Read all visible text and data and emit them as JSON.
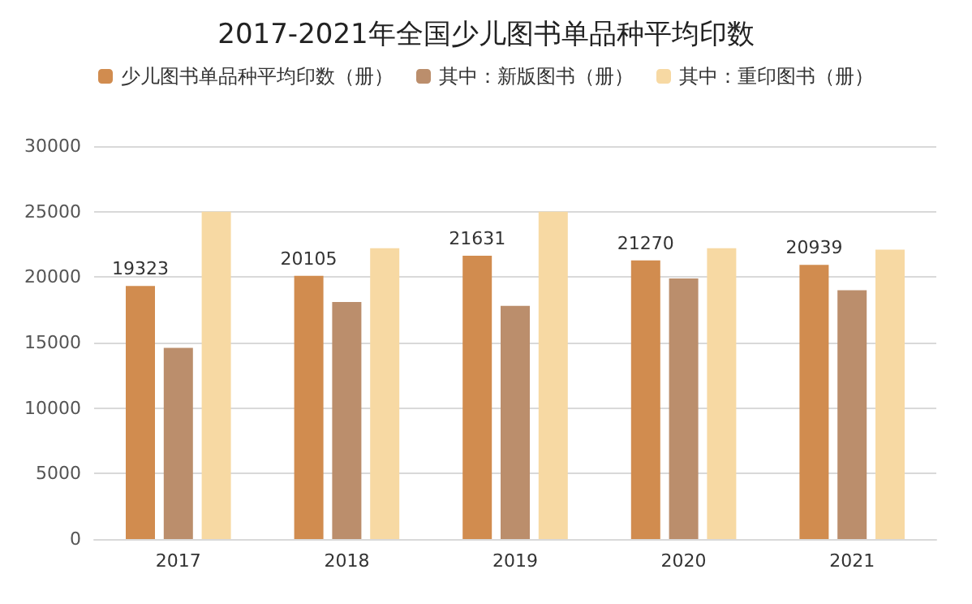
{
  "chart_data": {
    "type": "bar",
    "title": "2017-2021年全国少儿图书单品种平均印数",
    "categories": [
      "2017",
      "2018",
      "2019",
      "2020",
      "2021"
    ],
    "series": [
      {
        "name": "少儿图书单品种平均印数（册）",
        "color": "#d18c4f",
        "values": [
          19323,
          20105,
          21631,
          21270,
          20939
        ],
        "value_labels": [
          "19323",
          "20105",
          "21631",
          "21270",
          "20939"
        ]
      },
      {
        "name": "其中：新版图书（册）",
        "color": "#bb8e6c",
        "values": [
          14600,
          18100,
          17800,
          19900,
          19000
        ]
      },
      {
        "name": "其中：重印图书（册）",
        "color": "#f7d9a3",
        "values": [
          25000,
          22200,
          25000,
          22200,
          22100
        ]
      }
    ],
    "ylim": [
      0,
      30000
    ],
    "yticks": [
      0,
      5000,
      10000,
      15000,
      20000,
      25000,
      30000
    ],
    "grid": "y",
    "legend": "top"
  }
}
